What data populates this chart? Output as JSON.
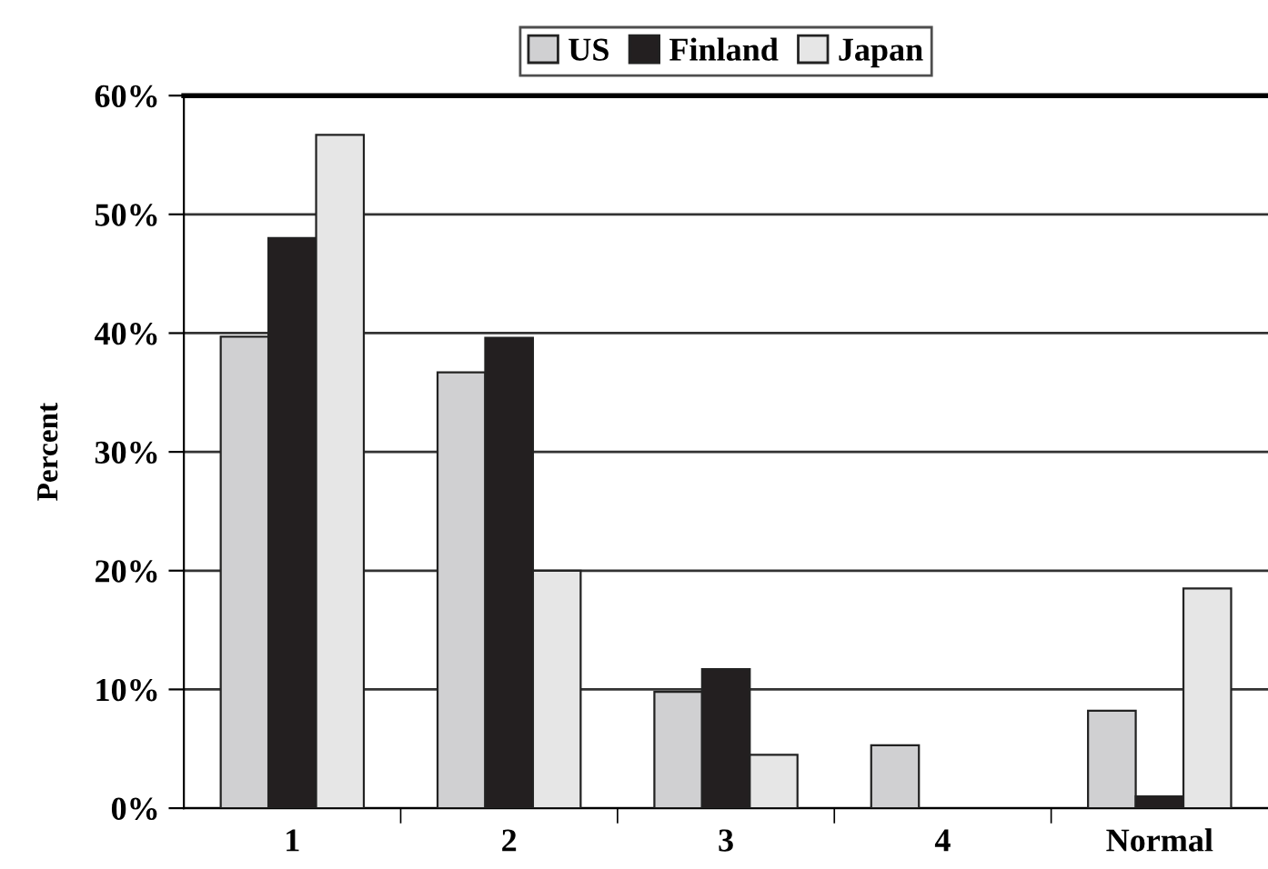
{
  "chart_data": {
    "type": "bar",
    "ylabel": "Percent",
    "categories": [
      "1",
      "2",
      "3",
      "4",
      "Normal"
    ],
    "series": [
      {
        "name": "US",
        "color": "#d0d0d2",
        "values": [
          39.7,
          36.7,
          9.8,
          5.3,
          8.2
        ]
      },
      {
        "name": "Finland",
        "color": "#231f20",
        "values": [
          48.0,
          39.6,
          11.7,
          0,
          1.0
        ]
      },
      {
        "name": "Japan",
        "color": "#e6e6e6",
        "values": [
          56.7,
          20.0,
          4.5,
          0,
          18.5
        ]
      }
    ],
    "ylim": [
      0,
      60
    ],
    "yticks": [
      {
        "value": 0,
        "label": "0%"
      },
      {
        "value": 10,
        "label": "10%"
      },
      {
        "value": 20,
        "label": "20%"
      },
      {
        "value": 30,
        "label": "30%"
      },
      {
        "value": 40,
        "label": "40%"
      },
      {
        "value": 50,
        "label": "50%"
      },
      {
        "value": 60,
        "label": "60%"
      }
    ],
    "grid": "y",
    "legend": "top"
  }
}
